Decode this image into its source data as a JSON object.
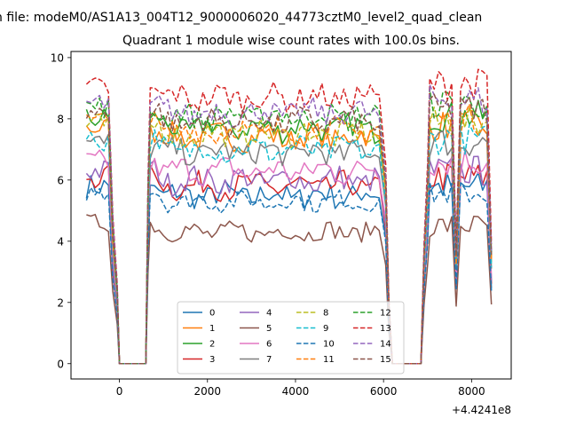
{
  "figure": {
    "suptitle": "n file: modeM0/AS1A13_004T12_9000006020_44773cztM0_level2_quad_clean",
    "title": "Quadrant 1 module wise count rates with 100.0s bins.",
    "x_offset_label": "+4.4241e8"
  },
  "chart_data": {
    "type": "line",
    "title": "Quadrant 1 module wise count rates with 100.0s bins.",
    "xlabel": "",
    "ylabel": "",
    "x_offset": "+4.4241e8",
    "xlim": [
      -1100,
      8900
    ],
    "ylim": [
      -0.5,
      10.2
    ],
    "xticks": [
      0,
      2000,
      4000,
      6000,
      8000
    ],
    "yticks": [
      0,
      2,
      4,
      6,
      8,
      10
    ],
    "grid": false,
    "legend": {
      "location": "lower center",
      "columns": 4
    },
    "segments": [
      {
        "x_start": -750,
        "x_end": -250
      },
      {
        "x_start": 700,
        "x_end": 5950
      },
      {
        "x_start": 7050,
        "x_end": 8450
      }
    ],
    "gaps": [
      {
        "x_from": 0,
        "x_to": 600
      },
      {
        "x_from": 6200,
        "x_to": 6850
      }
    ],
    "series": [
      {
        "name": "0",
        "color": "#1f77b4",
        "style": "solid",
        "level": 5.5,
        "noise": 0.4
      },
      {
        "name": "1",
        "color": "#ff7f0e",
        "style": "solid",
        "level": 7.4,
        "noise": 0.4
      },
      {
        "name": "2",
        "color": "#2ca02c",
        "style": "solid",
        "level": 7.7,
        "noise": 0.4
      },
      {
        "name": "3",
        "color": "#d62728",
        "style": "solid",
        "level": 5.8,
        "noise": 0.4
      },
      {
        "name": "4",
        "color": "#9467bd",
        "style": "solid",
        "level": 6.0,
        "noise": 0.4
      },
      {
        "name": "5",
        "color": "#8c564b",
        "style": "solid",
        "level": 4.3,
        "noise": 0.3
      },
      {
        "name": "6",
        "color": "#e377c2",
        "style": "solid",
        "level": 6.3,
        "noise": 0.4
      },
      {
        "name": "7",
        "color": "#7f7f7f",
        "style": "solid",
        "level": 6.9,
        "noise": 0.4
      },
      {
        "name": "8",
        "color": "#bcbd22",
        "style": "dashed",
        "level": 7.5,
        "noise": 0.4
      },
      {
        "name": "9",
        "color": "#17becf",
        "style": "dashed",
        "level": 7.0,
        "noise": 0.4
      },
      {
        "name": "10",
        "color": "#1f77b4",
        "style": "dashed",
        "level": 5.3,
        "noise": 0.3
      },
      {
        "name": "11",
        "color": "#ff7f0e",
        "style": "dashed",
        "level": 7.6,
        "noise": 0.4
      },
      {
        "name": "12",
        "color": "#2ca02c",
        "style": "dashed",
        "level": 8.1,
        "noise": 0.4
      },
      {
        "name": "13",
        "color": "#d62728",
        "style": "dashed",
        "level": 8.7,
        "noise": 0.4
      },
      {
        "name": "14",
        "color": "#9467bd",
        "style": "dashed",
        "level": 8.2,
        "noise": 0.4
      },
      {
        "name": "15",
        "color": "#8c564b",
        "style": "dashed",
        "level": 7.9,
        "noise": 0.4
      }
    ]
  }
}
